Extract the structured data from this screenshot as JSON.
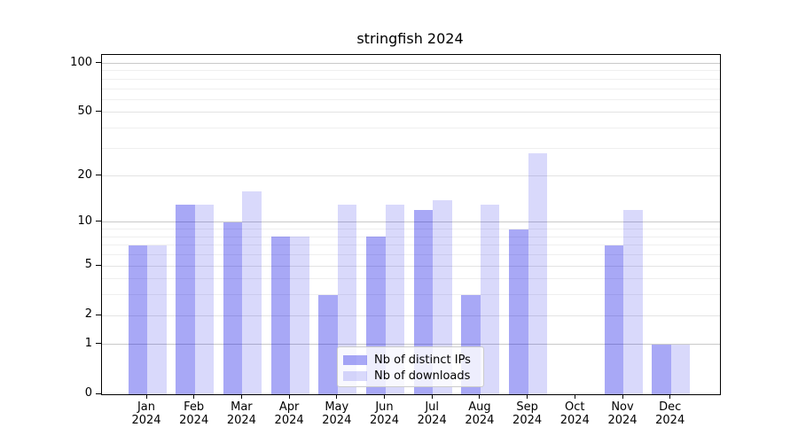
{
  "chart_data": {
    "type": "bar",
    "title": "stringfish 2024",
    "categories": [
      "Jan 2024",
      "Feb 2024",
      "Mar 2024",
      "Apr 2024",
      "May 2024",
      "Jun 2024",
      "Jul 2024",
      "Aug 2024",
      "Sep 2024",
      "Oct 2024",
      "Nov 2024",
      "Dec 2024"
    ],
    "series": [
      {
        "name": "Nb of distinct IPs",
        "color": "rgba(0,0,230,0.34)",
        "values": [
          7,
          13,
          10,
          8,
          3,
          8,
          12,
          3,
          9,
          0,
          7,
          1
        ]
      },
      {
        "name": "Nb of downloads",
        "color": "rgba(0,0,230,0.15)",
        "values": [
          7,
          13,
          16,
          8,
          13,
          13,
          14,
          13,
          28,
          0,
          12,
          1
        ]
      }
    ],
    "xlabel": "",
    "ylabel": "",
    "yscale": "log1p",
    "ylim": [
      0,
      113
    ],
    "yticks": {
      "values": [
        0,
        1,
        2,
        5,
        10,
        20,
        50,
        100
      ],
      "labels": [
        "0",
        "1",
        "2",
        "5",
        "10",
        "20",
        "50",
        "100"
      ]
    },
    "grid": {
      "strong": [
        1,
        10,
        100
      ],
      "weak": [
        2,
        5,
        20,
        50
      ],
      "minor": [
        3,
        4,
        6,
        7,
        8,
        9,
        30,
        40,
        60,
        70,
        80,
        90
      ]
    },
    "legend_position": "lower center",
    "background_color": "#ffffff",
    "spine_color": "#000000"
  }
}
